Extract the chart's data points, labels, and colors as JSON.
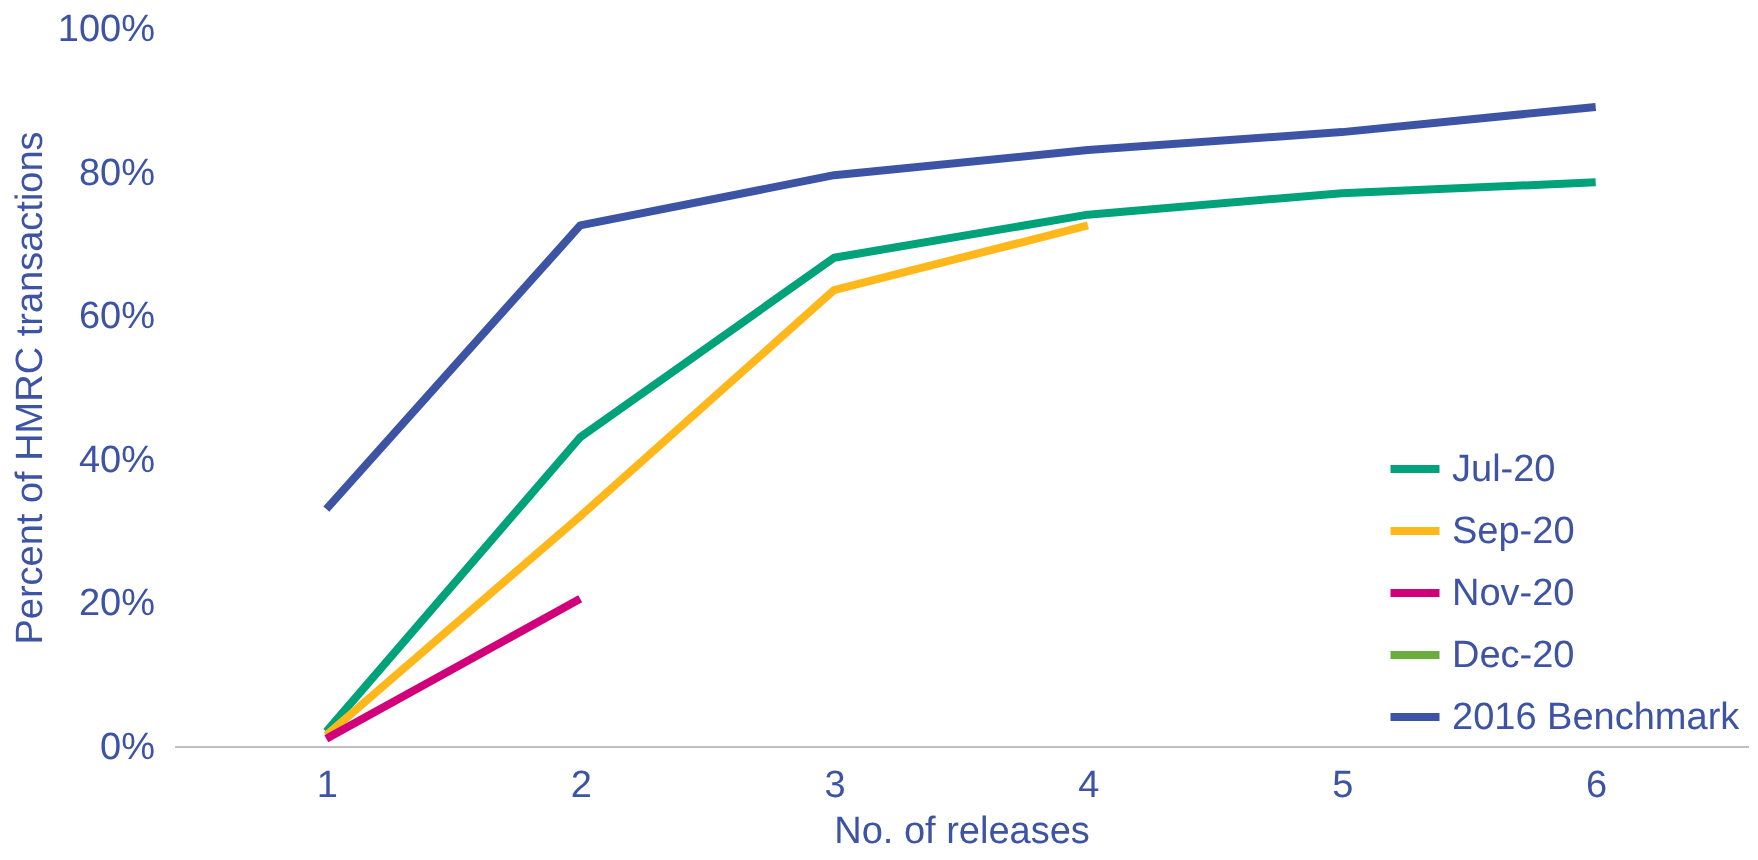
{
  "chart_data": {
    "type": "line",
    "xlabel": "No. of releases",
    "ylabel": "Percent of HMRC transactions",
    "categories": [
      "1",
      "2",
      "3",
      "4",
      "5",
      "6"
    ],
    "ylim": [
      0,
      100
    ],
    "yticks": [
      {
        "value": 0,
        "label": "0%"
      },
      {
        "value": 20,
        "label": "20%"
      },
      {
        "value": 40,
        "label": "40%"
      },
      {
        "value": 60,
        "label": "60%"
      },
      {
        "value": 80,
        "label": "80%"
      },
      {
        "value": 100,
        "label": "100%"
      }
    ],
    "grid": false,
    "legend": "bottom right",
    "marker": "none",
    "line_style": "solid",
    "series": [
      {
        "name": "Jul-20",
        "color": "#00a27a",
        "values": [
          2,
          43,
          68,
          74,
          77,
          78.5
        ]
      },
      {
        "name": "Sep-20",
        "color": "#ffb81c",
        "values": [
          1.5,
          32,
          63.5,
          72.5,
          null,
          null
        ]
      },
      {
        "name": "Nov-20",
        "color": "#d1007a",
        "values": [
          1,
          20.5,
          null,
          null,
          null,
          null
        ]
      },
      {
        "name": "Dec-20",
        "color": "#6cac3c",
        "values": [
          null,
          null,
          null,
          null,
          null,
          null
        ]
      },
      {
        "name": "2016 Benchmark",
        "color": "#3d53a4",
        "values": [
          33,
          72.5,
          79.5,
          83,
          85.5,
          89
        ]
      }
    ]
  }
}
